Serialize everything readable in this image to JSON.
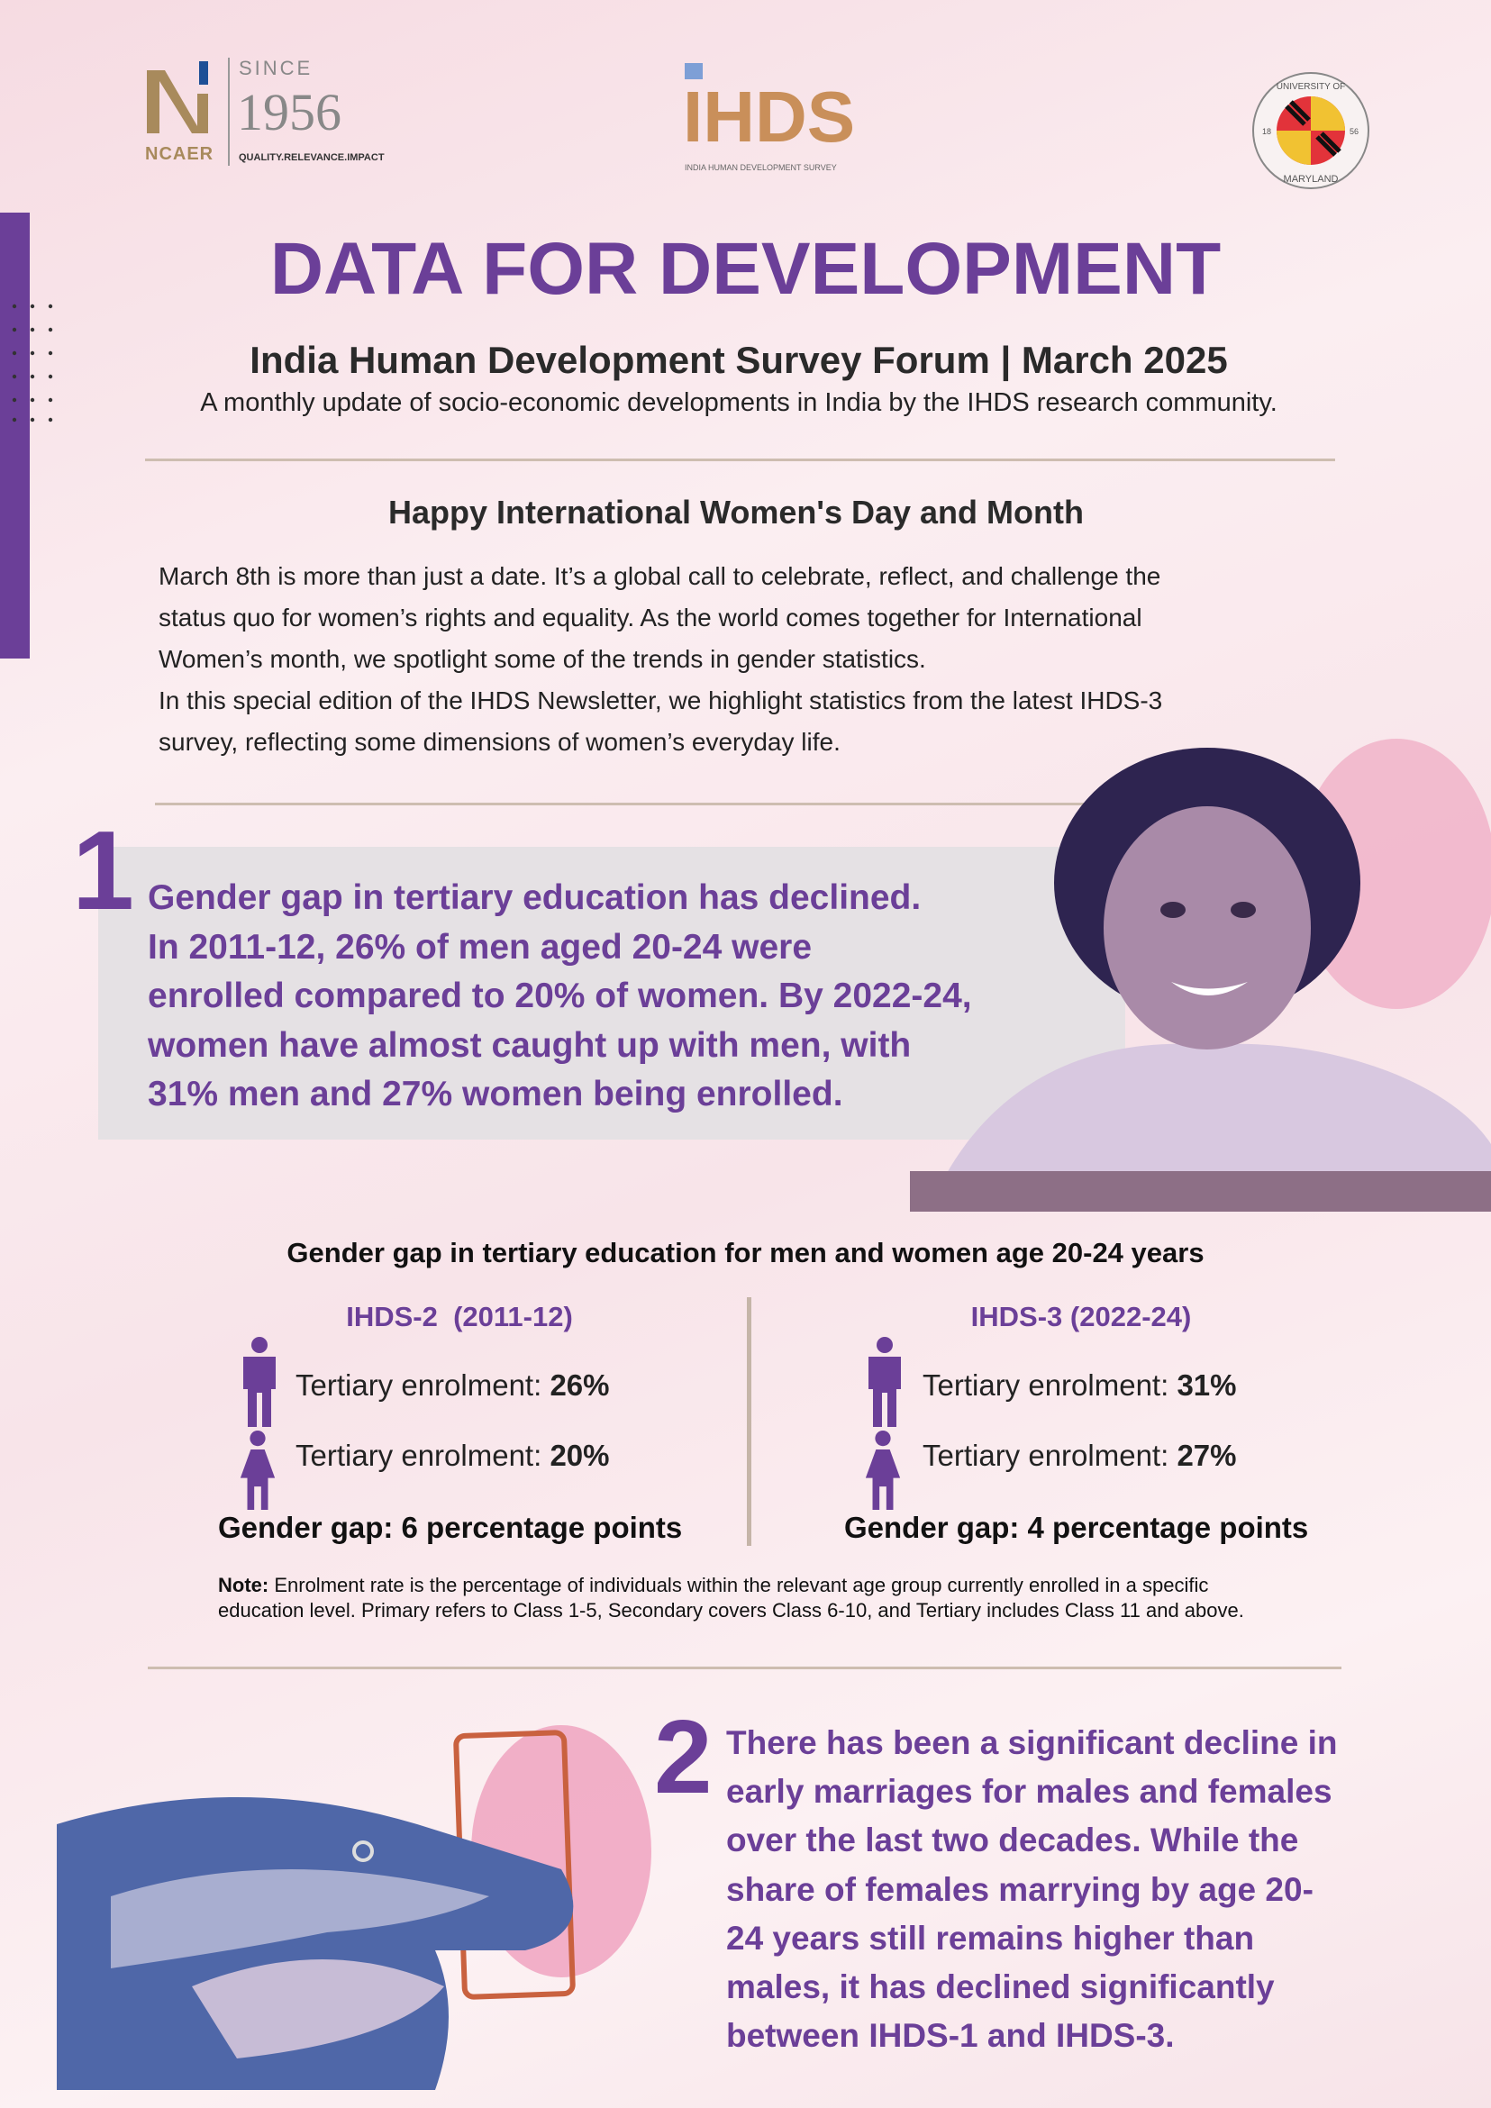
{
  "logos": {
    "ncaer": {
      "letter": "N",
      "name": "NCAER",
      "since": "SINCE",
      "year": "1956",
      "tagline": "QUALITY.RELEVANCE.IMPACT"
    },
    "ihds": {
      "name": "IHDS",
      "tagline": "INDIA HUMAN DEVELOPMENT SURVEY"
    },
    "umd": {
      "top": "UNIVERSITY OF",
      "bottom": "MARYLAND",
      "left": "18",
      "right": "56"
    }
  },
  "header": {
    "title": "DATA FOR DEVELOPMENT",
    "subtitle": "India Human Development Survey Forum | March 2025",
    "tagline": "A monthly update of socio-economic developments in India by the IHDS research community."
  },
  "intro": {
    "heading": "Happy International Women's Day and Month",
    "lines": [
      "March 8th is more than just a date. It’s a global call to celebrate, reflect, and challenge the",
      "status quo for women’s rights and equality. As the world comes together for International",
      "Women’s month, we spotlight some of the trends in gender statistics.",
      "In this special edition of the IHDS Newsletter, we highlight statistics from the latest IHDS-3",
      "survey, reflecting some dimensions of women’s everyday life."
    ]
  },
  "section1": {
    "number": "1",
    "lines": [
      "Gender gap in tertiary education has declined.",
      "In 2011-12, 26% of men aged 20-24 were",
      "enrolled compared to 20% of women. By 2022-24,",
      "women have almost caught up with men, with",
      "31% men and 27% women being enrolled."
    ]
  },
  "infographic": {
    "title": "Gender gap in tertiary education for men and women age 20-24 years",
    "label_prefix": "Tertiary enrolment: ",
    "gap_prefix": "Gender gap: ",
    "panels": [
      {
        "heading": "IHDS-2  (2011-12)",
        "men": "26%",
        "women": "20%",
        "gap": "6 percentage points"
      },
      {
        "heading": "IHDS-3 (2022-24)",
        "men": "31%",
        "women": "27%",
        "gap": "4 percentage points"
      }
    ],
    "note_label": "Note:",
    "note_lines": [
      " Enrolment rate is the percentage of individuals within the relevant age group currently enrolled in a specific",
      "education level. Primary refers to Class 1-5, Secondary covers Class 6-10, and Tertiary includes Class 11 and above."
    ]
  },
  "section2": {
    "number": "2",
    "lines": [
      "There has been a significant decline in",
      "early marriages for males and females",
      "over the last two decades. While the",
      "share of females marrying by age 20-",
      "24 years still remains higher than",
      "males, it has declined significantly",
      "between IHDS-1 and IHDS-3."
    ]
  },
  "colors": {
    "accent": "#6b3f98",
    "ihds_orange": "#c98f5a",
    "ihds_blue": "#7e9fd6",
    "ncaer_gold": "#a88a5c",
    "divider": "#cdbdb0"
  }
}
